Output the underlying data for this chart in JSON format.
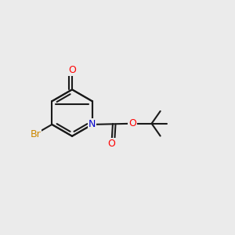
{
  "bg_color": "#ebebeb",
  "bond_color": "#1a1a1a",
  "bond_width": 1.5,
  "atom_colors": {
    "O": "#ff0000",
    "N": "#0000cc",
    "Br": "#cc8800"
  },
  "font_size_atom": 9
}
